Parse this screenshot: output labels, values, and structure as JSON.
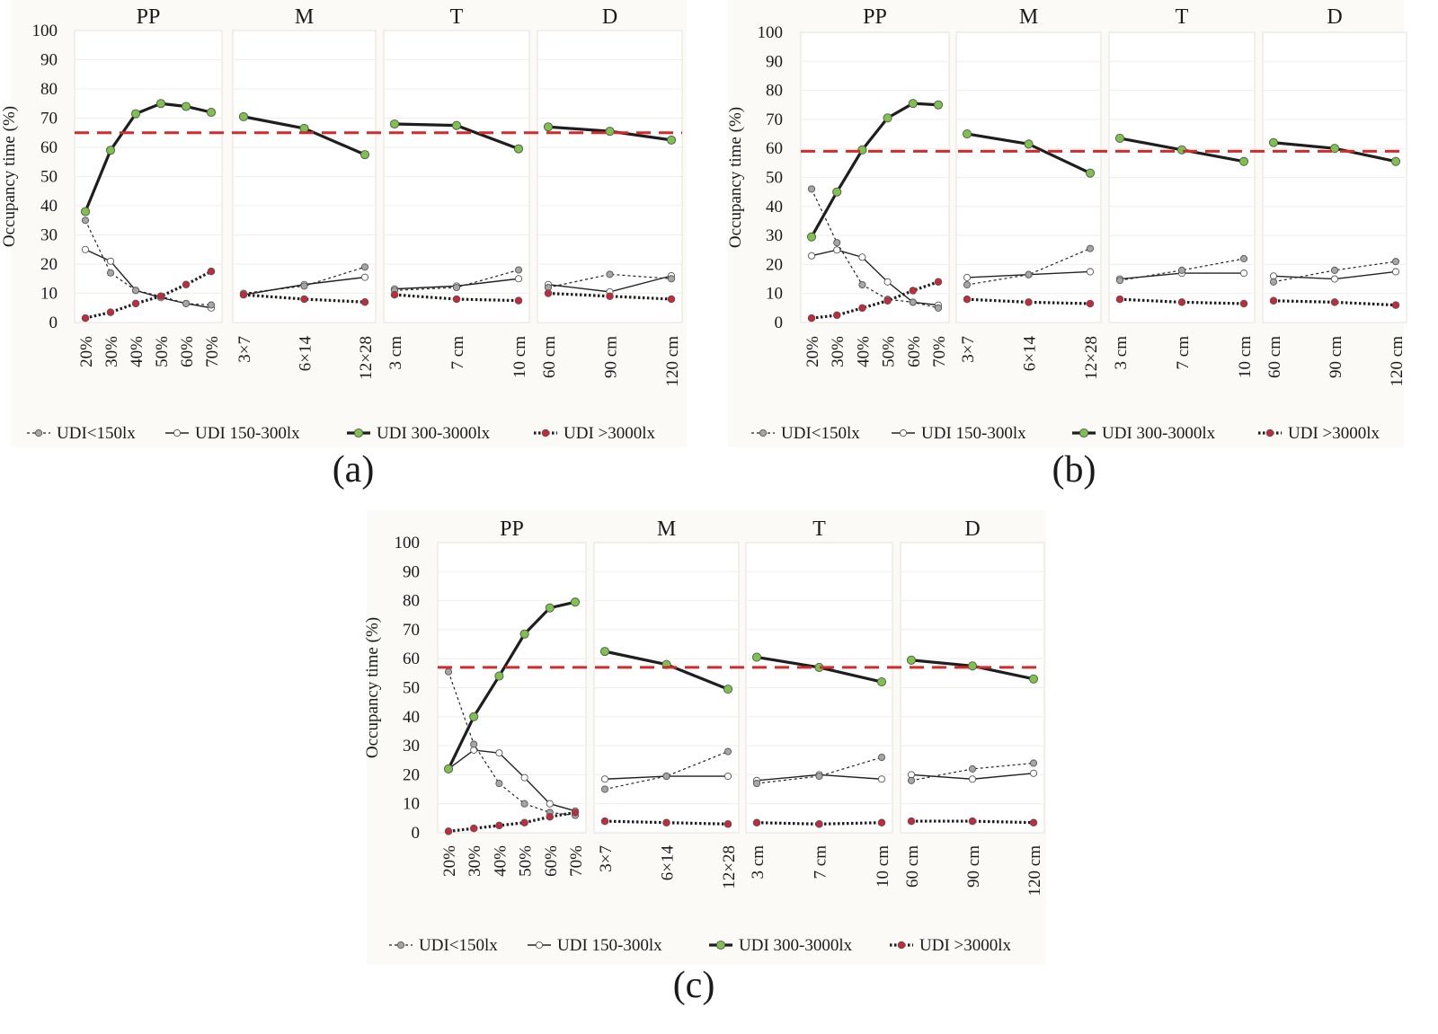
{
  "y_axis": {
    "label": "Occupancy time (%)",
    "ticks": [
      "0",
      "10",
      "20",
      "30",
      "40",
      "50",
      "60",
      "70",
      "80",
      "90",
      "100"
    ],
    "ylim": [
      0,
      100
    ]
  },
  "legend": [
    {
      "key": "lt150",
      "label": "UDI<150lx"
    },
    {
      "key": "r150_300",
      "label": "UDI 150-300lx"
    },
    {
      "key": "r300_3000",
      "label": "UDI 300-3000lx"
    },
    {
      "key": "gt3000",
      "label": "UDI >3000lx"
    }
  ],
  "colors": {
    "panel_bg": "#fcfaf6",
    "plot_bg": "#ffffff",
    "grid": "#e6e2dc",
    "green": "#7dc24a",
    "red": "#c8283a",
    "gray_marker": "#a6a6a6",
    "line": "#222222",
    "ref_line": "#d42a2a"
  },
  "chart_data": [
    {
      "type": "line",
      "caption": "(a)",
      "reference_line": 65,
      "groups": [
        {
          "name": "PP",
          "categories": [
            "20%",
            "30%",
            "40%",
            "50%",
            "60%",
            "70%"
          ],
          "series": {
            "lt150": [
              35,
              17,
              11,
              9,
              6.5,
              6
            ],
            "r150_300": [
              25,
              21,
              11,
              8.5,
              6.5,
              5
            ],
            "r300_3000": [
              38,
              59,
              71.5,
              75,
              74,
              72
            ],
            "gt3000": [
              1.5,
              3.5,
              6.5,
              9,
              13,
              17.5
            ]
          }
        },
        {
          "name": "M",
          "categories": [
            "3×7",
            "6×14",
            "12×28"
          ],
          "series": {
            "lt150": [
              10,
              12.5,
              19
            ],
            "r150_300": [
              9.5,
              13,
              15.5
            ],
            "r300_3000": [
              70.5,
              66.5,
              57.5
            ],
            "gt3000": [
              9.5,
              8,
              7
            ]
          }
        },
        {
          "name": "T",
          "categories": [
            "3 cm",
            "7 cm",
            "10 cm"
          ],
          "series": {
            "lt150": [
              11,
              12,
              18
            ],
            "r150_300": [
              11.5,
              12.5,
              15
            ],
            "r300_3000": [
              68,
              67.5,
              59.5
            ],
            "gt3000": [
              9.5,
              8,
              7.5
            ]
          }
        },
        {
          "name": "D",
          "categories": [
            "60 cm",
            "90 cm",
            "120 cm"
          ],
          "series": {
            "lt150": [
              12,
              16.5,
              15
            ],
            "r150_300": [
              13,
              10.5,
              16
            ],
            "r300_3000": [
              67,
              65.5,
              62.5
            ],
            "gt3000": [
              10,
              9,
              8
            ]
          }
        }
      ]
    },
    {
      "type": "line",
      "caption": "(b)",
      "reference_line": 59,
      "groups": [
        {
          "name": "PP",
          "categories": [
            "20%",
            "30%",
            "40%",
            "50%",
            "60%",
            "70%"
          ],
          "series": {
            "lt150": [
              46,
              27.5,
              13,
              8,
              7,
              5
            ],
            "r150_300": [
              23,
              25,
              22.5,
              14,
              7,
              6
            ],
            "r300_3000": [
              29.5,
              45,
              59.5,
              70.5,
              75.5,
              75
            ],
            "gt3000": [
              1.5,
              2.5,
              5,
              7.5,
              11,
              14
            ]
          }
        },
        {
          "name": "M",
          "categories": [
            "3×7",
            "6×14",
            "12×28"
          ],
          "series": {
            "lt150": [
              13,
              16.5,
              25.5
            ],
            "r150_300": [
              15.5,
              16.5,
              17.5
            ],
            "r300_3000": [
              65,
              61.5,
              51.5
            ],
            "gt3000": [
              8,
              7,
              6.5
            ]
          }
        },
        {
          "name": "T",
          "categories": [
            "3 cm",
            "7 cm",
            "10 cm"
          ],
          "series": {
            "lt150": [
              14.5,
              18,
              22
            ],
            "r150_300": [
              15,
              17,
              17
            ],
            "r300_3000": [
              63.5,
              59.5,
              55.5
            ],
            "gt3000": [
              8,
              7,
              6.5
            ]
          }
        },
        {
          "name": "D",
          "categories": [
            "60 cm",
            "90 cm",
            "120 cm"
          ],
          "series": {
            "lt150": [
              14,
              18,
              21
            ],
            "r150_300": [
              16,
              15,
              17.5
            ],
            "r300_3000": [
              62,
              60,
              55.5
            ],
            "gt3000": [
              7.5,
              7,
              6
            ]
          }
        }
      ]
    },
    {
      "type": "line",
      "caption": "(c)",
      "reference_line": 57,
      "groups": [
        {
          "name": "PP",
          "categories": [
            "20%",
            "30%",
            "40%",
            "50%",
            "60%",
            "70%"
          ],
          "series": {
            "lt150": [
              55.5,
              30.5,
              17,
              10,
              7,
              6
            ],
            "r150_300": [
              22,
              28.5,
              27.5,
              19,
              10,
              7.5
            ],
            "r300_3000": [
              22,
              40,
              54,
              68.5,
              77.5,
              79.5
            ],
            "gt3000": [
              0.5,
              1.5,
              2.5,
              3.5,
              5.5,
              7
            ]
          }
        },
        {
          "name": "M",
          "categories": [
            "3×7",
            "6×14",
            "12×28"
          ],
          "series": {
            "lt150": [
              15,
              19.5,
              28
            ],
            "r150_300": [
              18.5,
              19.5,
              19.5
            ],
            "r300_3000": [
              62.5,
              58,
              49.5
            ],
            "gt3000": [
              4,
              3.5,
              3
            ]
          }
        },
        {
          "name": "T",
          "categories": [
            "3 cm",
            "7 cm",
            "10 cm"
          ],
          "series": {
            "lt150": [
              17,
              19.5,
              26
            ],
            "r150_300": [
              18,
              20,
              18.5
            ],
            "r300_3000": [
              60.5,
              57,
              52
            ],
            "gt3000": [
              3.5,
              3,
              3.5
            ]
          }
        },
        {
          "name": "D",
          "categories": [
            "60 cm",
            "90 cm",
            "120 cm"
          ],
          "series": {
            "lt150": [
              18,
              22,
              24
            ],
            "r150_300": [
              20,
              18.5,
              20.5
            ],
            "r300_3000": [
              59.5,
              57.5,
              53
            ],
            "gt3000": [
              4,
              4,
              3.5
            ]
          }
        }
      ]
    }
  ]
}
